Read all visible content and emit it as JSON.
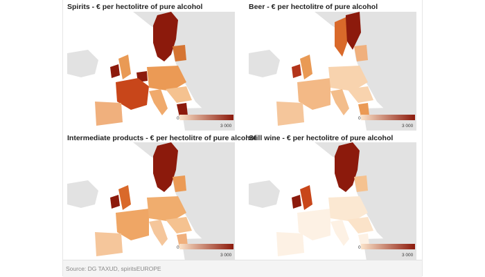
{
  "panels": [
    {
      "title": "Spirits - € per hectolitre of pure alcohol"
    },
    {
      "title": "Beer - € per hectolitre of pure alcohol"
    },
    {
      "title": "Intermediate products - € per hectolitre of pure alcohol"
    },
    {
      "title": "Still wine - € per hectolitre of pure alcohol"
    }
  ],
  "scale": {
    "min_label": "0",
    "max_label": "3 000",
    "min_value": 0,
    "max_value": 3000,
    "color_low": "#fbe3c9",
    "color_high": "#8c1a0c"
  },
  "colors": {
    "non_eu": "#e2e2e2",
    "sea": "#ffffff"
  },
  "source": "Source: DG TAXUD, spiritsEUROPE"
}
